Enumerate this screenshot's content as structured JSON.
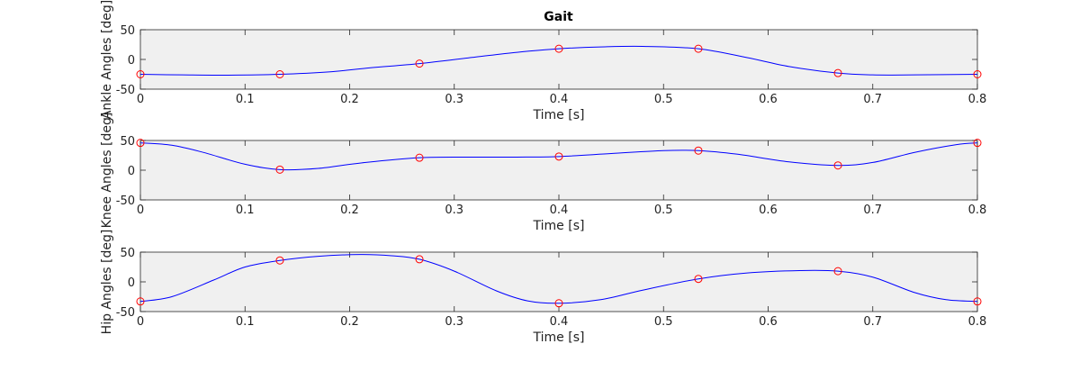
{
  "figure": {
    "title": "Gait"
  },
  "chart_data": [
    {
      "type": "line",
      "title": "Gait",
      "xlabel": "Time [s]",
      "ylabel": "Ankle Angles [deg]",
      "xlim": [
        0,
        0.8
      ],
      "ylim": [
        -50,
        50
      ],
      "xticks": [
        0,
        0.1,
        0.2,
        0.3,
        0.4,
        0.5,
        0.6,
        0.7,
        0.8
      ],
      "yticks": [
        -50,
        0,
        50
      ],
      "grid": false,
      "curve": {
        "color": "#0000ff",
        "x": [
          0,
          0.04,
          0.08,
          0.1333,
          0.18,
          0.22,
          0.2667,
          0.32,
          0.36,
          0.4,
          0.44,
          0.48,
          0.5333,
          0.58,
          0.62,
          0.6667,
          0.7,
          0.74,
          0.8
        ],
        "y": [
          -25,
          -26,
          -26.5,
          -25,
          -21,
          -14,
          -7,
          4,
          12,
          18,
          21,
          22,
          18,
          3,
          -12,
          -23,
          -26,
          -26,
          -25
        ]
      },
      "markers": {
        "color": "#ff0000",
        "x": [
          0,
          0.1333,
          0.2667,
          0.4,
          0.5333,
          0.6667,
          0.8
        ],
        "y": [
          -25,
          -25,
          -7,
          18,
          18,
          -23,
          -25
        ]
      }
    },
    {
      "type": "line",
      "xlabel": "Time [s]",
      "ylabel": "Knee Angles [deg]",
      "xlim": [
        0,
        0.8
      ],
      "ylim": [
        -50,
        50
      ],
      "xticks": [
        0,
        0.1,
        0.2,
        0.3,
        0.4,
        0.5,
        0.6,
        0.7,
        0.8
      ],
      "yticks": [
        -50,
        0,
        50
      ],
      "grid": false,
      "curve": {
        "color": "#0000ff",
        "x": [
          0,
          0.03,
          0.06,
          0.1,
          0.1333,
          0.17,
          0.21,
          0.2667,
          0.32,
          0.36,
          0.4,
          0.45,
          0.5,
          0.5333,
          0.57,
          0.62,
          0.6667,
          0.7,
          0.74,
          0.78,
          0.8
        ],
        "y": [
          46,
          42,
          30,
          10,
          1,
          3,
          12,
          21,
          22,
          22,
          23,
          28,
          33,
          33,
          27,
          14,
          8,
          13,
          30,
          43,
          46
        ]
      },
      "markers": {
        "color": "#ff0000",
        "x": [
          0,
          0.1333,
          0.2667,
          0.4,
          0.5333,
          0.6667,
          0.8
        ],
        "y": [
          46,
          1,
          21,
          23,
          33,
          8,
          46
        ]
      }
    },
    {
      "type": "line",
      "xlabel": "Time [s]",
      "ylabel": "Hip Angles [deg]",
      "xlim": [
        0,
        0.8
      ],
      "ylim": [
        -50,
        50
      ],
      "xticks": [
        0,
        0.1,
        0.2,
        0.3,
        0.4,
        0.5,
        0.6,
        0.7,
        0.8
      ],
      "yticks": [
        -50,
        0,
        50
      ],
      "grid": false,
      "curve": {
        "color": "#0000ff",
        "x": [
          0,
          0.03,
          0.07,
          0.1,
          0.1333,
          0.17,
          0.21,
          0.24,
          0.2667,
          0.3,
          0.34,
          0.37,
          0.4,
          0.44,
          0.48,
          0.5333,
          0.58,
          0.63,
          0.6667,
          0.7,
          0.74,
          0.77,
          0.8
        ],
        "y": [
          -33,
          -25,
          3,
          25,
          36,
          43,
          46,
          44,
          38,
          18,
          -15,
          -32,
          -36,
          -30,
          -14,
          5,
          15,
          19,
          18,
          8,
          -18,
          -30,
          -33
        ]
      },
      "markers": {
        "color": "#ff0000",
        "x": [
          0,
          0.1333,
          0.2667,
          0.4,
          0.5333,
          0.6667,
          0.8
        ],
        "y": [
          -33,
          36,
          38,
          -36,
          5,
          18,
          -33
        ]
      }
    }
  ]
}
